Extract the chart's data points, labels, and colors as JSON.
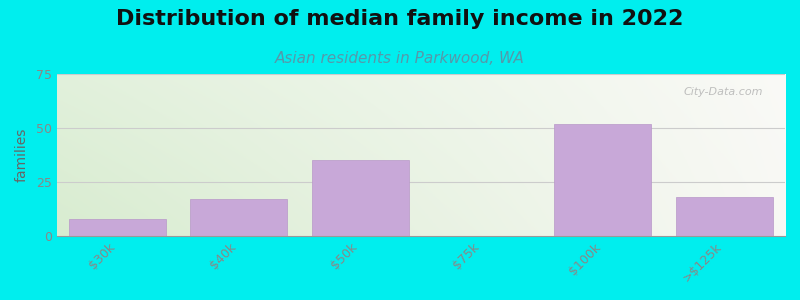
{
  "title": "Distribution of median family income in 2022",
  "subtitle": "Asian residents in Parkwood, WA",
  "categories": [
    "$30k",
    "$40k",
    "$50k",
    "$75k",
    "$100k",
    ">$125k"
  ],
  "values": [
    8,
    17,
    35,
    0,
    52,
    18
  ],
  "bar_color": "#c8a8d8",
  "bar_edge_color": "#b898c8",
  "background_color": "#00eeee",
  "ylabel": "families",
  "ylim": [
    0,
    75
  ],
  "yticks": [
    0,
    25,
    50,
    75
  ],
  "title_fontsize": 16,
  "subtitle_fontsize": 11,
  "subtitle_color": "#5599aa",
  "ylabel_color": "#666666",
  "tick_color": "#888888",
  "watermark": "City-Data.com",
  "grid_color": "#cccccc"
}
